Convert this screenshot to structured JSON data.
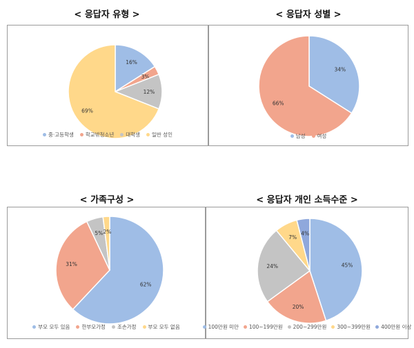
{
  "chart_data": [
    {
      "type": "pie",
      "title": "< 응답자 유형 >",
      "categories": [
        "중·고등학생",
        "학교밖청소년",
        "대학생",
        "일반 성인"
      ],
      "values": [
        16,
        3,
        12,
        69
      ],
      "labels": [
        "16%",
        "3%",
        "12%",
        "69%"
      ],
      "colors": [
        "#9fbde6",
        "#f2a58d",
        "#c4c4c4",
        "#ffd88a"
      ],
      "legend_position": "bottom"
    },
    {
      "type": "pie",
      "title": "< 응답자 성별 >",
      "categories": [
        "남성",
        "여성"
      ],
      "values": [
        34,
        66
      ],
      "labels": [
        "34%",
        "66%"
      ],
      "colors": [
        "#9fbde6",
        "#f2a58d"
      ],
      "legend_position": "bottom"
    },
    {
      "type": "pie",
      "title": "< 가족구성 >",
      "categories": [
        "부모 모두 있음",
        "한부모가정",
        "조손가정",
        "부모 모두 없음"
      ],
      "values": [
        62,
        31,
        5,
        2
      ],
      "labels": [
        "62%",
        "31%",
        "5%",
        "2%"
      ],
      "colors": [
        "#9fbde6",
        "#f2a58d",
        "#c4c4c4",
        "#ffd88a"
      ],
      "legend_position": "bottom"
    },
    {
      "type": "pie",
      "title": "< 응답자 개인 소득수준 >",
      "categories": [
        "100만원 미만",
        "100~199만원",
        "200~299만원",
        "300~399만원",
        "400만원 이상"
      ],
      "values": [
        45,
        20,
        24,
        7,
        4
      ],
      "labels": [
        "45%",
        "20%",
        "24%",
        "7%",
        "4%"
      ],
      "colors": [
        "#9fbde6",
        "#f2a58d",
        "#c4c4c4",
        "#ffd88a",
        "#8fa8dc"
      ],
      "legend_position": "bottom"
    }
  ]
}
